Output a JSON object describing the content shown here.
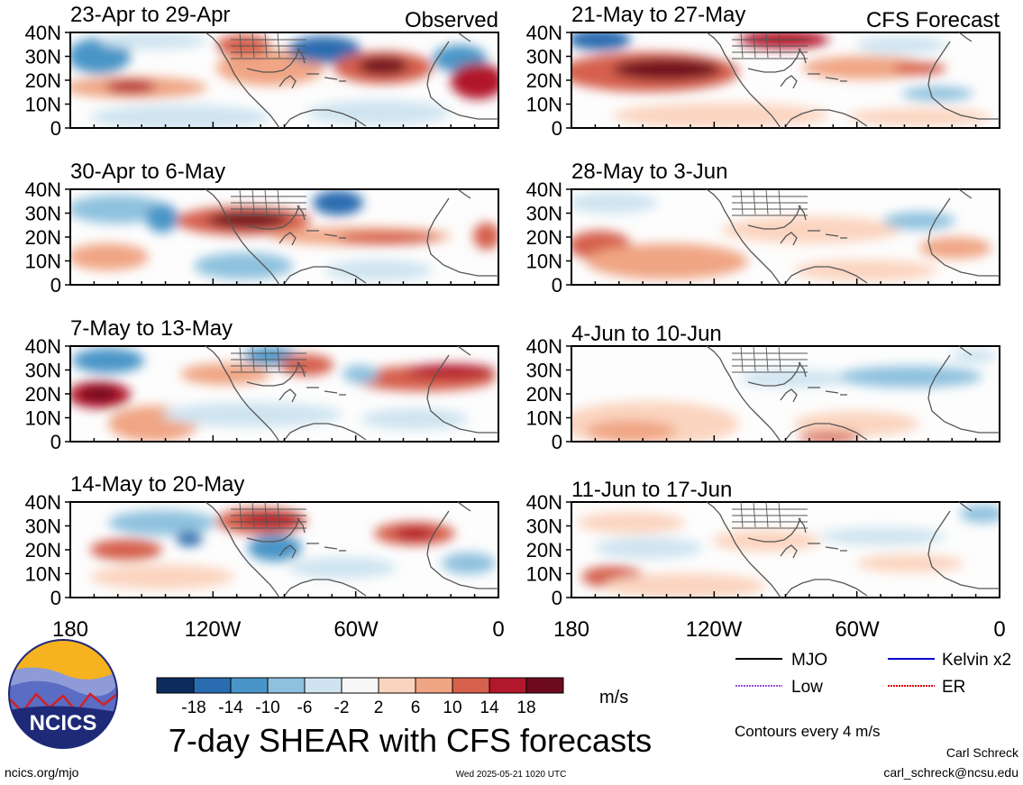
{
  "left_header": "Observed",
  "right_header": "CFS Forecast",
  "panels_left": [
    {
      "title": "23-Apr to 29-Apr"
    },
    {
      "title": "30-Apr to 6-May"
    },
    {
      "title": "7-May to 13-May"
    },
    {
      "title": "14-May to 20-May"
    }
  ],
  "panels_right": [
    {
      "title": "21-May to 27-May"
    },
    {
      "title": "28-May to 3-Jun"
    },
    {
      "title": "4-Jun to 10-Jun"
    },
    {
      "title": "11-Jun to 17-Jun"
    }
  ],
  "lat_labels": [
    "40N",
    "30N",
    "20N",
    "10N",
    "0"
  ],
  "lon_labels": [
    "180",
    "120W",
    "60W",
    "0"
  ],
  "colorbar": {
    "labels": [
      "-18",
      "-14",
      "-10",
      "-6",
      "-2",
      "2",
      "6",
      "10",
      "14",
      "18"
    ],
    "colors": [
      "#0d2d5e",
      "#2a6cb0",
      "#4a95c7",
      "#8ec1de",
      "#cfe4f0",
      "#f7f7f7",
      "#fbd4bf",
      "#f0a584",
      "#d6604d",
      "#b2182b",
      "#6e0a1e"
    ],
    "unit": "m/s"
  },
  "legend": {
    "items": [
      {
        "label": "MJO",
        "color": "#000000"
      },
      {
        "label": "Kelvin x2",
        "color": "#0000cc"
      },
      {
        "label": "Low",
        "color": "#9b4fd6"
      },
      {
        "label": "ER",
        "color": "#dd0000"
      }
    ],
    "contour_note": "Contours every 4 m/s"
  },
  "main_title": "7-day SHEAR with CFS forecasts",
  "logo_text": "NCICS",
  "footer": {
    "url": "ncics.org/mjo",
    "timestamp": "Wed 2025-05-21 1020 UTC",
    "author": "Carl Schreck",
    "email": "carl_schreck@ncsu.edu"
  }
}
